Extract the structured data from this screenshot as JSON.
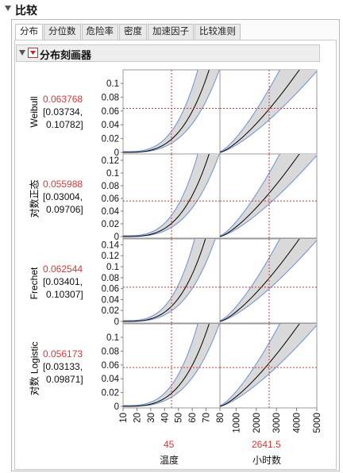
{
  "window": {
    "title": "比较"
  },
  "tabs": [
    {
      "label": "分布",
      "active": true
    },
    {
      "label": "分位数",
      "active": false
    },
    {
      "label": "危险率",
      "active": false
    },
    {
      "label": "密度",
      "active": false
    },
    {
      "label": "加速因子",
      "active": false
    },
    {
      "label": "比较准则",
      "active": false
    }
  ],
  "profiler": {
    "title": "分布刻画器"
  },
  "rows": [
    {
      "label": "Weibull",
      "value": "0.063768",
      "ci_line1": "[0.03734,",
      "ci_line2": "0.10782]",
      "y_ticks": [
        "0.1",
        "0.08",
        "0.06",
        "0.04",
        "0.02",
        "0"
      ],
      "y_max": 0.115
    },
    {
      "label": "对数正态",
      "value": "0.055988",
      "ci_line1": "[0.03004,",
      "ci_line2": "0.09706]",
      "y_ticks": [
        "0.12",
        "0.1",
        "0.08",
        "0.06",
        "0.04",
        "0.02",
        "0"
      ],
      "y_max": 0.125
    },
    {
      "label": "Frechet",
      "value": "0.062544",
      "ci_line1": "[0.03401,",
      "ci_line2": "0.10307]",
      "y_ticks": [
        "0.14",
        "0.12",
        "0.1",
        "0.08",
        "0.06",
        "0.04",
        "0.02",
        "0"
      ],
      "y_max": 0.145
    },
    {
      "label": "对数 Logistic",
      "value": "0.056173",
      "ci_line1": "[0.03133,",
      "ci_line2": "0.09871]",
      "y_ticks": [
        "0.1",
        "0.08",
        "0.06",
        "0.04",
        "0.02",
        "0"
      ],
      "y_max": 0.115
    }
  ],
  "x_axes": [
    {
      "title": "温度",
      "current": "45",
      "ticks": [
        "10",
        "20",
        "30",
        "40",
        "50",
        "60",
        "70",
        "80"
      ],
      "min": 10,
      "max": 80
    },
    {
      "title": "小时数",
      "current": "2641.5",
      "ticks": [
        "1000",
        "2000",
        "3000",
        "4000",
        "5000"
      ],
      "min": 200,
      "max": 5000
    }
  ],
  "colors": {
    "curve": "#000000",
    "band": "#d9d9d9",
    "band_edge": "#6b8fd6",
    "crosshair": "#d03a3a"
  }
}
